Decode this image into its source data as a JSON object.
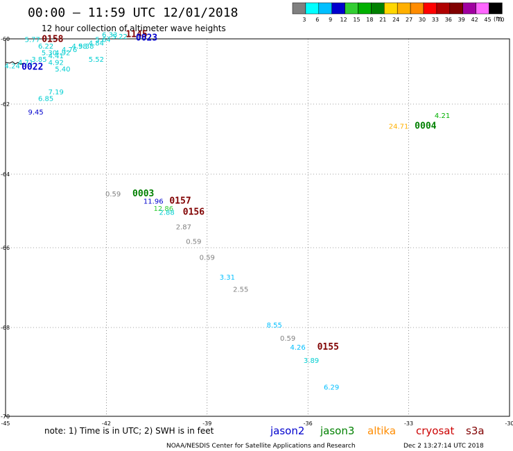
{
  "title": "00:00 – 11:59 UTC 12/01/2018",
  "subtitle": "12 hour collection of altimeter wave heights",
  "colorbar": {
    "levels": [
      "3",
      "6",
      "9",
      "12",
      "15",
      "18",
      "21",
      "24",
      "27",
      "30",
      "33",
      "36",
      "39",
      "42",
      "45",
      "70"
    ],
    "unit": "(ft)",
    "colors": [
      "#808080",
      "#00ffff",
      "#00bfff",
      "#0000cd",
      "#32cd32",
      "#00b000",
      "#008000",
      "#ffd700",
      "#ffb000",
      "#ff8c00",
      "#ff0000",
      "#b00000",
      "#800000",
      "#a000a0",
      "#ff66ff",
      "#000000"
    ]
  },
  "axes": {
    "x_ticks": [
      "-45",
      "-42",
      "-39",
      "-36",
      "-33",
      "-30"
    ],
    "y_ticks": [
      "-60",
      "-62",
      "-64",
      "-66",
      "-68",
      "-70"
    ]
  },
  "observations": [
    {
      "text": "6.33",
      "lon": -41.9,
      "lat": -59.95,
      "color": "#00ced1"
    },
    {
      "text": "5.22",
      "lon": -41.6,
      "lat": -60.0,
      "color": "#00ced1"
    },
    {
      "text": "5.77",
      "lon": -44.2,
      "lat": -60.1,
      "color": "#00ced1"
    },
    {
      "text": "5.64",
      "lon": -42.1,
      "lat": -60.1,
      "color": "#00ced1"
    },
    {
      "text": "4.84",
      "lon": -42.3,
      "lat": -60.2,
      "color": "#00ced1"
    },
    {
      "text": "5.38",
      "lon": -42.6,
      "lat": -60.3,
      "color": "#00ced1"
    },
    {
      "text": "6.22",
      "lon": -43.8,
      "lat": -60.3,
      "color": "#00ced1"
    },
    {
      "text": "4.98",
      "lon": -42.8,
      "lat": -60.3,
      "color": "#00ced1"
    },
    {
      "text": "4.76",
      "lon": -43.1,
      "lat": -60.4,
      "color": "#00ced1"
    },
    {
      "text": "5.30",
      "lon": -43.7,
      "lat": -60.5,
      "color": "#00ced1"
    },
    {
      "text": "4.92",
      "lon": -43.3,
      "lat": -60.5,
      "color": "#00ced1"
    },
    {
      "text": "4.41",
      "lon": -43.5,
      "lat": -60.6,
      "color": "#00ced1"
    },
    {
      "text": "5.52",
      "lon": -42.3,
      "lat": -60.7,
      "color": "#00ced1"
    },
    {
      "text": "3.85",
      "lon": -44.0,
      "lat": -60.7,
      "color": "#00ced1"
    },
    {
      "text": "4.71",
      "lon": -44.4,
      "lat": -60.8,
      "color": "#00ced1"
    },
    {
      "text": "4.92",
      "lon": -43.5,
      "lat": -60.8,
      "color": "#00ced1"
    },
    {
      "text": "4.24",
      "lon": -44.8,
      "lat": -60.9,
      "color": "#00ced1"
    },
    {
      "text": "5.40",
      "lon": -43.3,
      "lat": -61.0,
      "color": "#00ced1"
    },
    {
      "text": "7.19",
      "lon": -43.5,
      "lat": -61.7,
      "color": "#00ced1"
    },
    {
      "text": "6.85",
      "lon": -43.8,
      "lat": -61.9,
      "color": "#00ced1"
    },
    {
      "text": "9.45",
      "lon": -44.1,
      "lat": -62.3,
      "color": "#0000cd"
    },
    {
      "text": "4.21",
      "lon": -32.0,
      "lat": -62.4,
      "color": "#00b000"
    },
    {
      "text": "24.71",
      "lon": -33.3,
      "lat": -62.7,
      "color": "#ffb000"
    },
    {
      "text": "0.59",
      "lon": -41.8,
      "lat": -64.6,
      "color": "#808080"
    },
    {
      "text": "11.96",
      "lon": -40.6,
      "lat": -64.8,
      "color": "#0000cd"
    },
    {
      "text": "12.86",
      "lon": -40.3,
      "lat": -65.0,
      "color": "#32cd32"
    },
    {
      "text": "2.88",
      "lon": -40.2,
      "lat": -65.1,
      "color": "#00ced1"
    },
    {
      "text": "2.87",
      "lon": -39.7,
      "lat": -65.5,
      "color": "#808080"
    },
    {
      "text": "0.59",
      "lon": -39.4,
      "lat": -65.9,
      "color": "#808080"
    },
    {
      "text": "0.59",
      "lon": -39.0,
      "lat": -66.3,
      "color": "#808080"
    },
    {
      "text": "3.31",
      "lon": -38.4,
      "lat": -66.8,
      "color": "#00bfff"
    },
    {
      "text": "2.55",
      "lon": -38.0,
      "lat": -67.1,
      "color": "#808080"
    },
    {
      "text": "8.55",
      "lon": -37.0,
      "lat": -68.0,
      "color": "#00bfff"
    },
    {
      "text": "0.59",
      "lon": -36.6,
      "lat": -68.3,
      "color": "#808080"
    },
    {
      "text": "4.26",
      "lon": -36.3,
      "lat": -68.5,
      "color": "#00bfff"
    },
    {
      "text": "3.89",
      "lon": -35.9,
      "lat": -68.8,
      "color": "#00ced1"
    },
    {
      "text": "6.29",
      "lon": -35.3,
      "lat": -69.4,
      "color": "#00bfff"
    }
  ],
  "time_labels": [
    {
      "text": "1145",
      "lon": -41.1,
      "lat": -59.95,
      "color": "#800000"
    },
    {
      "text": "0158",
      "lon": -43.6,
      "lat": -60.1,
      "color": "#800000"
    },
    {
      "text": "0023",
      "lon": -40.8,
      "lat": -60.05,
      "color": "#0000cd"
    },
    {
      "text": "0022",
      "lon": -44.2,
      "lat": -60.95,
      "color": "#0000cd"
    },
    {
      "text": "0004",
      "lon": -32.5,
      "lat": -62.7,
      "color": "#008000"
    },
    {
      "text": "0003",
      "lon": -40.9,
      "lat": -64.6,
      "color": "#008000"
    },
    {
      "text": "0157",
      "lon": -39.8,
      "lat": -64.8,
      "color": "#800000"
    },
    {
      "text": "0156",
      "lon": -39.4,
      "lat": -65.1,
      "color": "#800000"
    },
    {
      "text": "0155",
      "lon": -35.4,
      "lat": -68.5,
      "color": "#800000"
    }
  ],
  "note": "note:  1) Time is in UTC;  2) SWH is in feet",
  "satellites": [
    {
      "name": "jason2",
      "color": "#0000cd"
    },
    {
      "name": "jason3",
      "color": "#008000"
    },
    {
      "name": "altika",
      "color": "#ff8c00"
    },
    {
      "name": "cryosat",
      "color": "#cc0000"
    },
    {
      "name": "s3a",
      "color": "#800000"
    }
  ],
  "credit": "NOAA/NESDIS Center for Satellite Applications and Research",
  "timestamp": "Dec  2 13:27:14 UTC 2018"
}
